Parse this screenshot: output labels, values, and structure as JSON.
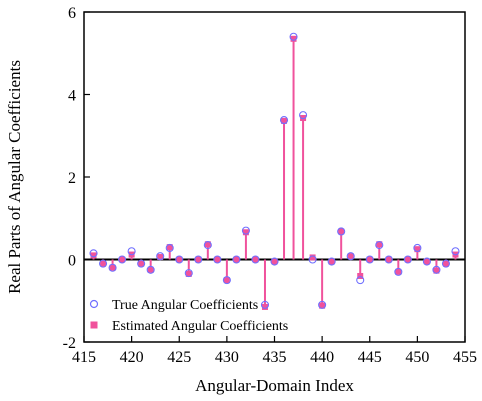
{
  "chart_data": {
    "type": "stem",
    "xlabel": "Angular-Domain Index",
    "ylabel": "Real Parts of Angular Coefficients",
    "xlim": [
      415,
      455
    ],
    "ylim": [
      -2,
      6
    ],
    "x_ticks": [
      415,
      420,
      425,
      430,
      435,
      440,
      445,
      450,
      455
    ],
    "y_ticks": [
      -2,
      0,
      2,
      4,
      6
    ],
    "grid": false,
    "legend_position": "bottom-left",
    "colors": {
      "true": "#6f6fff",
      "estimated": "#f0529c",
      "axes": "#000000"
    },
    "x": [
      416,
      417,
      418,
      419,
      420,
      421,
      422,
      423,
      424,
      425,
      426,
      427,
      428,
      429,
      430,
      431,
      432,
      433,
      434,
      435,
      436,
      437,
      438,
      439,
      440,
      441,
      442,
      443,
      444,
      445,
      446,
      447,
      448,
      449,
      450,
      451,
      452,
      453,
      454
    ],
    "series": [
      {
        "name": "True Angular Coefficients",
        "marker": "hollow-circle",
        "values": [
          0.15,
          -0.1,
          -0.2,
          0.0,
          0.2,
          -0.1,
          -0.25,
          0.08,
          0.28,
          0.0,
          -0.33,
          0.0,
          0.35,
          0.0,
          -0.5,
          0.0,
          0.7,
          0.0,
          -1.1,
          -0.05,
          3.38,
          5.4,
          3.5,
          0.0,
          -1.1,
          -0.05,
          0.68,
          0.08,
          -0.5,
          0.0,
          0.35,
          0.0,
          -0.3,
          0.0,
          0.28,
          -0.05,
          -0.25,
          -0.1,
          0.2
        ]
      },
      {
        "name": "Estimated Angular Coefficients",
        "marker": "filled-square",
        "values": [
          0.1,
          -0.1,
          -0.2,
          0.0,
          0.12,
          -0.1,
          -0.25,
          0.06,
          0.3,
          0.0,
          -0.35,
          0.0,
          0.37,
          0.0,
          -0.5,
          0.0,
          0.66,
          0.0,
          -1.15,
          -0.05,
          3.36,
          5.35,
          3.43,
          0.05,
          -1.12,
          -0.05,
          0.68,
          0.08,
          -0.4,
          0.0,
          0.37,
          0.0,
          -0.3,
          0.0,
          0.25,
          -0.05,
          -0.27,
          -0.1,
          0.12
        ]
      }
    ]
  }
}
